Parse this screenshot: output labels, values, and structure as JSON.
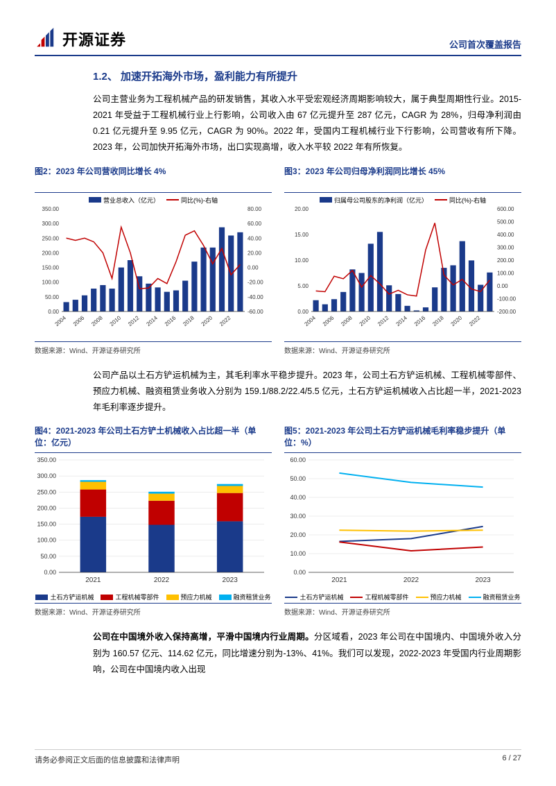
{
  "header": {
    "brand": "开源证券",
    "report_type": "公司首次覆盖报告"
  },
  "section": {
    "number": "1.2、",
    "title": "加速开拓海外市场，盈利能力有所提升"
  },
  "para1": "公司主营业务为工程机械产品的研发销售，其收入水平受宏观经济周期影响较大，属于典型周期性行业。2015-2021 年受益于工程机械行业上行影响，公司收入由 67 亿元提升至 287 亿元，CAGR 为 28%，归母净利润由 0.21 亿元提升至 9.95 亿元，CAGR 为 90%。2022 年，受国内工程机械行业下行影响，公司营收有所下降。2023 年，公司加快开拓海外市场，出口实现高增，收入水平较 2022 年有所恢复。",
  "para2": "公司产品以土石方铲运机械为主，其毛利率水平稳步提升。2023 年，公司土石方铲运机械、工程机械零部件、预应力机械、融资租赁业务收入分别为 159.1/88.2/22.4/5.5 亿元，土石方铲运机械收入占比超一半，2021-2023 年毛利率逐步提升。",
  "para3_bold": "公司在中国境外收入保持高增，平滑中国境内行业周期。",
  "para3_rest": "分区域看，2023 年公司在中国境内、中国境外收入分别为 160.57 亿元、114.62 亿元，同比增速分别为-13%、41%。我们可以发现，2022-2023 年受国内行业周期影响，公司在中国境内收入出现",
  "chart2": {
    "title": "图2：2023 年公司营收同比增长 4%",
    "type": "bar+line",
    "legend_bar": "营业总收入（亿元）",
    "legend_line": "同比(%)-右轴",
    "years": [
      2004,
      2005,
      2006,
      2007,
      2008,
      2009,
      2010,
      2011,
      2012,
      2013,
      2014,
      2015,
      2016,
      2017,
      2018,
      2019,
      2020,
      2021,
      2022,
      2023
    ],
    "bar_values": [
      32,
      40,
      55,
      78,
      90,
      78,
      150,
      175,
      120,
      95,
      82,
      67,
      72,
      105,
      170,
      218,
      218,
      287,
      259,
      270
    ],
    "line_values": [
      40,
      37,
      40,
      35,
      20,
      -15,
      55,
      20,
      -29,
      -28,
      -15,
      -22,
      8,
      44,
      50,
      30,
      5,
      26,
      -10,
      4
    ],
    "bar_color": "#1a3a8a",
    "line_color": "#c00000",
    "y_left": {
      "min": 0,
      "max": 350,
      "step": 50
    },
    "y_right": {
      "min": -60,
      "max": 80,
      "step": 20
    },
    "bg": "#ffffff",
    "grid": "#d9d9d9"
  },
  "chart3": {
    "title": "图3：2023 年公司归母净利润同比增长 45%",
    "type": "bar+line",
    "legend_bar": "归属母公司股东的净利润（亿元）",
    "legend_line": "同比(%)-右轴",
    "years": [
      2004,
      2005,
      2006,
      2007,
      2008,
      2009,
      2010,
      2011,
      2012,
      2013,
      2014,
      2015,
      2016,
      2017,
      2018,
      2019,
      2020,
      2021,
      2022,
      2023
    ],
    "bar_values": [
      2.2,
      1.4,
      2.4,
      3.8,
      8.2,
      7.5,
      13.2,
      15.5,
      5.1,
      3.4,
      1.1,
      0.21,
      0.8,
      4.7,
      8.5,
      9.0,
      13.7,
      9.95,
      5.2,
      7.6
    ],
    "line_values": [
      -40,
      -46,
      75,
      55,
      120,
      -10,
      80,
      15,
      -65,
      -35,
      -70,
      -80,
      280,
      490,
      85,
      7,
      50,
      -25,
      -45,
      45
    ],
    "bar_color": "#1a3a8a",
    "line_color": "#c00000",
    "y_left": {
      "min": 0,
      "max": 20,
      "step": 5
    },
    "y_right": {
      "min": -200,
      "max": 600,
      "step": 100
    },
    "bg": "#ffffff"
  },
  "chart4": {
    "title": "图4：2021-2023 年公司土石方铲土机械收入占比超一半（单位：亿元）",
    "type": "stacked-bar",
    "years": [
      2021,
      2022,
      2023
    ],
    "series": [
      {
        "name": "土石方铲运机械",
        "color": "#1a3a8a",
        "values": [
          173,
          148,
          159
        ]
      },
      {
        "name": "工程机械零部件",
        "color": "#c00000",
        "values": [
          85,
          75,
          88
        ]
      },
      {
        "name": "预应力机械",
        "color": "#ffc000",
        "values": [
          24,
          22,
          22
        ]
      },
      {
        "name": "融资租赁业务",
        "color": "#00b0f0",
        "values": [
          5,
          6,
          6
        ]
      }
    ],
    "y": {
      "min": 0,
      "max": 350,
      "step": 50
    },
    "bg": "#ffffff"
  },
  "chart5": {
    "title": "图5：2021-2023 年公司土石方铲运机械毛利率稳步提升（单位：%）",
    "type": "line",
    "years": [
      2021,
      2022,
      2023
    ],
    "series": [
      {
        "name": "土石方铲运机械",
        "color": "#1a3a8a",
        "values": [
          16.5,
          18.0,
          24.5
        ]
      },
      {
        "name": "工程机械零部件",
        "color": "#c00000",
        "values": [
          16.2,
          11.5,
          13.5
        ]
      },
      {
        "name": "预应力机械",
        "color": "#ffc000",
        "values": [
          22.5,
          22.0,
          22.5
        ]
      },
      {
        "name": "融资租赁业务",
        "color": "#00b0f0",
        "values": [
          53.0,
          48.0,
          45.5
        ]
      }
    ],
    "y": {
      "min": 0,
      "max": 60,
      "step": 10
    },
    "bg": "#ffffff"
  },
  "source": "数据来源：Wind、开源证券研究所",
  "footer": {
    "disclaimer": "请务必参阅正文后面的信息披露和法律声明",
    "page": "6 / 27"
  },
  "colors": {
    "brand_blue": "#1a3a8a",
    "accent_red": "#c00000",
    "yellow": "#ffc000",
    "cyan": "#00b0f0",
    "grid": "#d9d9d9"
  }
}
